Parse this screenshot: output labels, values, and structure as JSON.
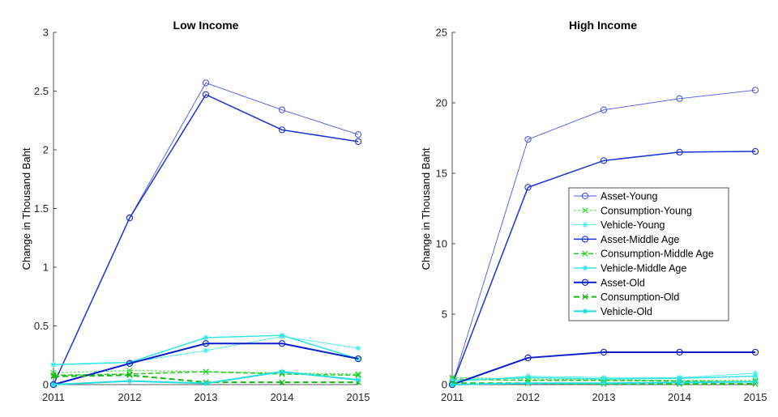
{
  "series_styles": [
    {
      "color": "#4a5ce8",
      "width": 0.9,
      "dash": "",
      "marker": "circle"
    },
    {
      "color": "#33dd33",
      "width": 0.9,
      "dash": "3,2",
      "marker": "x"
    },
    {
      "color": "#44eeee",
      "width": 0.9,
      "dash": "",
      "marker": "star"
    },
    {
      "color": "#1a33d9",
      "width": 1.5,
      "dash": "",
      "marker": "circle"
    },
    {
      "color": "#22cc22",
      "width": 1.5,
      "dash": "6,3",
      "marker": "x"
    },
    {
      "color": "#33e6e6",
      "width": 1.5,
      "dash": "",
      "marker": "star"
    },
    {
      "color": "#0a1fc8",
      "width": 2.0,
      "dash": "",
      "marker": "circle"
    },
    {
      "color": "#11bb11",
      "width": 2.0,
      "dash": "7,4",
      "marker": "x"
    },
    {
      "color": "#22dddd",
      "width": 2.0,
      "dash": "",
      "marker": "star"
    }
  ],
  "chart_data": [
    {
      "type": "line",
      "title": "Low Income",
      "xlabel": "",
      "ylabel": "Change in Thousand Baht",
      "x": [
        2011,
        2012,
        2013,
        2014,
        2015
      ],
      "xlim": [
        2011,
        2015
      ],
      "ylim": [
        0,
        3
      ],
      "yticks": [
        0,
        0.5,
        1,
        1.5,
        2,
        2.5,
        3
      ],
      "ytick_labels": [
        "0",
        "0.5",
        "1",
        "1.5",
        "2",
        "2.5",
        "3"
      ],
      "grid": false,
      "legend": null,
      "series": [
        {
          "name": "Asset-Young",
          "values": [
            0,
            1.42,
            2.57,
            2.34,
            2.13
          ]
        },
        {
          "name": "Consumption-Young",
          "values": [
            0.1,
            0.12,
            0.11,
            0.1,
            0.09
          ]
        },
        {
          "name": "Vehicle-Young",
          "values": [
            0.17,
            0.19,
            0.29,
            0.41,
            0.31
          ]
        },
        {
          "name": "Asset-Middle Age",
          "values": [
            0,
            1.42,
            2.47,
            2.17,
            2.07
          ]
        },
        {
          "name": "Consumption-Middle Age",
          "values": [
            0.08,
            0.09,
            0.11,
            0.09,
            0.08
          ]
        },
        {
          "name": "Vehicle-Middle Age",
          "values": [
            0.17,
            0.19,
            0.4,
            0.42,
            0.22
          ]
        },
        {
          "name": "Asset-Old",
          "values": [
            0,
            0.18,
            0.35,
            0.35,
            0.22
          ]
        },
        {
          "name": "Consumption-Old",
          "values": [
            0.07,
            0.08,
            0.02,
            0.02,
            0.02
          ]
        },
        {
          "name": "Vehicle-Old",
          "values": [
            0,
            0.03,
            0.01,
            0.11,
            0.04
          ]
        }
      ]
    },
    {
      "type": "line",
      "title": "High Income",
      "xlabel": "",
      "ylabel": "Change in Thousand Baht",
      "x": [
        2011,
        2012,
        2013,
        2014,
        2015
      ],
      "xlim": [
        2011,
        2015
      ],
      "ylim": [
        0,
        25
      ],
      "yticks": [
        0,
        5,
        10,
        15,
        20,
        25
      ],
      "ytick_labels": [
        "0",
        "5",
        "10",
        "15",
        "20",
        "25"
      ],
      "grid": false,
      "legend": "inside-right",
      "series": [
        {
          "name": "Asset-Young",
          "values": [
            0,
            17.4,
            19.5,
            20.3,
            20.9
          ]
        },
        {
          "name": "Consumption-Young",
          "values": [
            0.5,
            0.4,
            0.35,
            0.3,
            0.3
          ]
        },
        {
          "name": "Vehicle-Young",
          "values": [
            0.2,
            0.6,
            0.5,
            0.5,
            0.8
          ]
        },
        {
          "name": "Asset-Middle Age",
          "values": [
            0,
            14.0,
            15.9,
            16.5,
            16.55
          ]
        },
        {
          "name": "Consumption-Middle Age",
          "values": [
            0.4,
            0.3,
            0.3,
            0.25,
            0.2
          ]
        },
        {
          "name": "Vehicle-Middle Age",
          "values": [
            0.3,
            0.5,
            0.4,
            0.45,
            0.6
          ]
        },
        {
          "name": "Asset-Old",
          "values": [
            0,
            1.9,
            2.3,
            2.3,
            2.3
          ]
        },
        {
          "name": "Consumption-Old",
          "values": [
            0.1,
            0.1,
            0.05,
            0.05,
            0.05
          ]
        },
        {
          "name": "Vehicle-Old",
          "values": [
            0,
            0.1,
            0.1,
            0.15,
            0.2
          ]
        }
      ]
    }
  ]
}
